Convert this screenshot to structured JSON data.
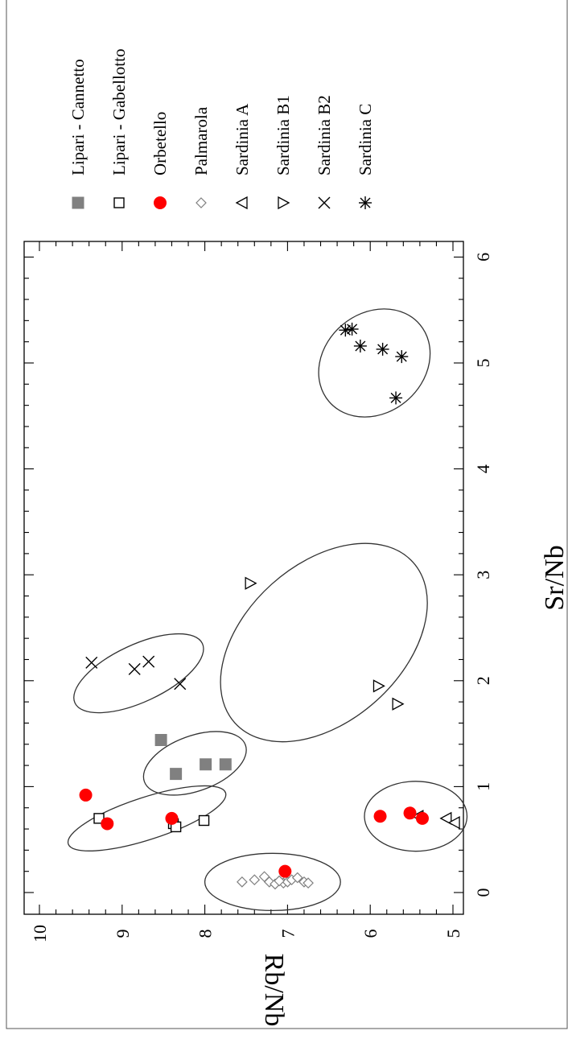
{
  "chart_data": {
    "type": "scatter",
    "title": "",
    "xlabel": "Sr/Nb",
    "ylabel": "Rb/Nb",
    "xlim": [
      -0.1,
      6.2
    ],
    "ylim": [
      4.8,
      10.1
    ],
    "x_ticks": [
      0,
      1,
      2,
      3,
      4,
      5,
      6
    ],
    "y_ticks": [
      5,
      6,
      7,
      8,
      9,
      10
    ],
    "grid": false,
    "legend_position": "right",
    "series": [
      {
        "name": "Lipari - Cannetto",
        "marker": "square-filled",
        "color": "#808080",
        "points": [
          [
            1.44,
            8.53
          ],
          [
            1.12,
            8.35
          ],
          [
            1.21,
            7.99
          ],
          [
            1.21,
            7.75
          ]
        ]
      },
      {
        "name": "Lipari - Gabellotto",
        "marker": "square-open",
        "color": "#000000",
        "points": [
          [
            0.7,
            9.28
          ],
          [
            0.65,
            8.38
          ],
          [
            0.62,
            8.35
          ],
          [
            0.68,
            8.01
          ]
        ]
      },
      {
        "name": "Orbetello",
        "marker": "circle-filled",
        "color": "#ff0000",
        "points": [
          [
            0.92,
            9.44
          ],
          [
            0.65,
            9.18
          ],
          [
            0.7,
            8.4
          ],
          [
            0.2,
            7.03
          ],
          [
            0.72,
            5.88
          ],
          [
            0.75,
            5.52
          ],
          [
            0.7,
            5.37
          ]
        ]
      },
      {
        "name": "Palmarola",
        "marker": "diamond-open",
        "color": "#808080",
        "points": [
          [
            0.1,
            7.55
          ],
          [
            0.12,
            7.4
          ],
          [
            0.15,
            7.28
          ],
          [
            0.1,
            7.22
          ],
          [
            0.08,
            7.15
          ],
          [
            0.09,
            7.05
          ],
          [
            0.1,
            7.0
          ],
          [
            0.12,
            6.95
          ],
          [
            0.14,
            6.88
          ],
          [
            0.1,
            6.8
          ],
          [
            0.09,
            6.75
          ],
          [
            0.11,
            7.1
          ]
        ]
      },
      {
        "name": "Sardinia A",
        "marker": "triangle-left-open",
        "color": "#000000",
        "points": [
          [
            0.72,
            5.42
          ],
          [
            0.7,
            5.08
          ],
          [
            0.66,
            4.98
          ]
        ]
      },
      {
        "name": "Sardinia B1",
        "marker": "triangle-right-open",
        "color": "#000000",
        "points": [
          [
            2.92,
            7.45
          ],
          [
            1.95,
            5.9
          ],
          [
            1.78,
            5.67
          ]
        ]
      },
      {
        "name": "Sardinia B2",
        "marker": "x",
        "color": "#000000",
        "points": [
          [
            2.17,
            9.37
          ],
          [
            2.18,
            8.68
          ],
          [
            2.11,
            8.85
          ],
          [
            1.97,
            8.3
          ]
        ]
      },
      {
        "name": "Sardinia C",
        "marker": "asterisk",
        "color": "#000000",
        "points": [
          [
            5.31,
            6.3
          ],
          [
            5.32,
            6.22
          ],
          [
            5.16,
            6.12
          ],
          [
            5.13,
            5.85
          ],
          [
            5.06,
            5.62
          ],
          [
            4.67,
            5.69
          ]
        ]
      }
    ],
    "ellipses": [
      {
        "center": [
          0.7,
          8.7
        ],
        "semi_x": 0.2,
        "semi_y": 1.0
      },
      {
        "center": [
          1.22,
          8.12
        ],
        "semi_x": 0.26,
        "semi_y": 0.65
      },
      {
        "center": [
          2.07,
          8.8
        ],
        "semi_x": 0.27,
        "semi_y": 0.85
      },
      {
        "center": [
          0.1,
          7.18
        ],
        "semi_x": 0.27,
        "semi_y": 0.82
      },
      {
        "center": [
          2.36,
          6.56
        ],
        "semi_x": 0.74,
        "semi_y": 1.45
      },
      {
        "center": [
          0.72,
          5.45
        ],
        "semi_x": 0.33,
        "semi_y": 0.62
      },
      {
        "center": [
          5.0,
          5.95
        ],
        "semi_x": 0.47,
        "semi_y": 0.72
      }
    ]
  }
}
